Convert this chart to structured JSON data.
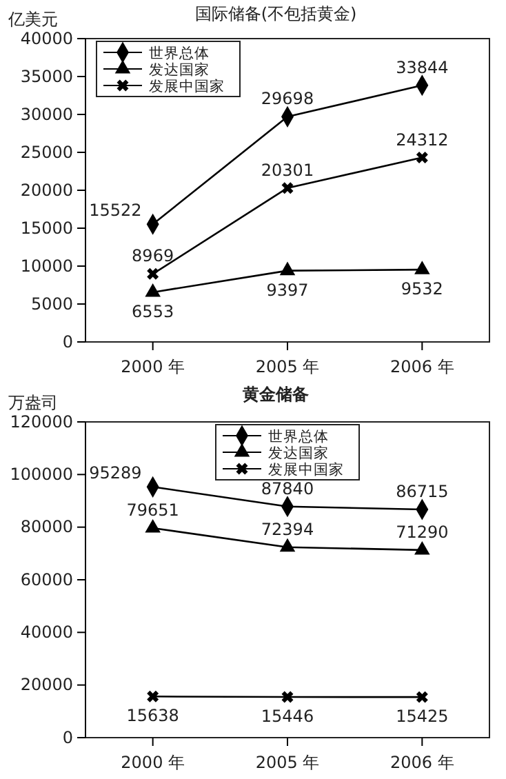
{
  "chart_data": [
    {
      "type": "line",
      "title": "国际储备(不包括黄金)",
      "ylabel": "亿美元",
      "categories": [
        "2000 年",
        "2005 年",
        "2006 年"
      ],
      "ylim": [
        0,
        40000
      ],
      "yticks": [
        0,
        5000,
        10000,
        15000,
        20000,
        25000,
        30000,
        35000,
        40000
      ],
      "legend": "top left",
      "data_labels": true,
      "grid": false,
      "line_style": "solid",
      "series": [
        {
          "name": "世界总体",
          "color": "#000000",
          "marker": "diamond",
          "values": [
            15522,
            29698,
            33844
          ]
        },
        {
          "name": "发达国家",
          "color": "#000000",
          "marker": "triangle",
          "values": [
            6553,
            9397,
            9532
          ]
        },
        {
          "name": "发展中国家",
          "color": "#000000",
          "marker": "cross",
          "values": [
            8969,
            20301,
            24312
          ]
        }
      ]
    },
    {
      "type": "line",
      "title": "黄金储备",
      "ylabel": "万盎司",
      "categories": [
        "2000 年",
        "2005 年",
        "2006 年"
      ],
      "ylim": [
        0,
        120000
      ],
      "yticks": [
        0,
        20000,
        40000,
        60000,
        80000,
        100000,
        120000
      ],
      "legend": "top",
      "data_labels": true,
      "grid": false,
      "line_style": "solid",
      "series": [
        {
          "name": "世界总体",
          "color": "#000000",
          "marker": "diamond",
          "values": [
            95289,
            87840,
            86715
          ]
        },
        {
          "name": "发达国家",
          "color": "#000000",
          "marker": "triangle",
          "values": [
            79651,
            72394,
            71290
          ]
        },
        {
          "name": "发展中国家",
          "color": "#000000",
          "marker": "cross",
          "values": [
            15638,
            15446,
            15425
          ]
        }
      ]
    }
  ]
}
